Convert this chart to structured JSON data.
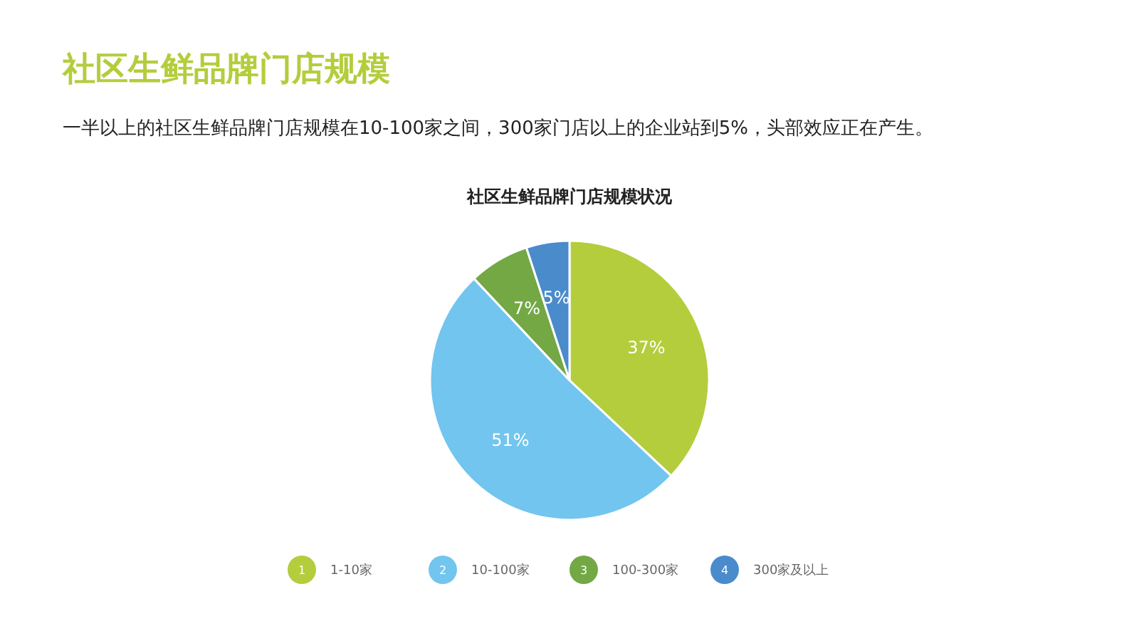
{
  "chart_data": {
    "type": "pie",
    "title": "社区生鲜品牌门店规模",
    "subtitle": "一半以上的社区生鲜品牌门店规模在10-100家之间，300家门店以上的企业站到5%，头部效应正在产生。",
    "annotations": [
      "社区生鲜品牌门店规模状况",
      "1",
      "2",
      "3",
      "4"
    ],
    "categories": [
      "1-10家",
      "10-100家",
      "100-300家",
      "300家及以上"
    ],
    "values": [
      37,
      51,
      7,
      5
    ],
    "colors": [
      "#b3cd3c",
      "#72c5ee",
      "#73a845",
      "#4a8bcb"
    ],
    "value_labels": [
      "37%",
      "51%",
      "7%",
      "5%"
    ],
    "legend": "bottom"
  }
}
